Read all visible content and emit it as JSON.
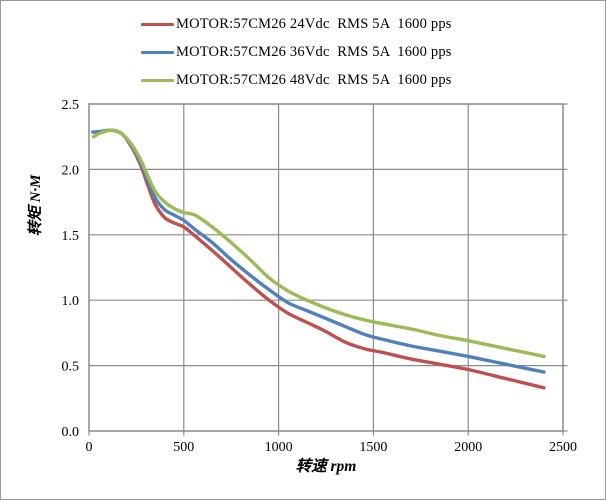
{
  "chart_data": {
    "type": "line",
    "title": "",
    "xlabel": "转速 rpm",
    "ylabel": "转矩 N·M",
    "xlim": [
      0,
      2500
    ],
    "ylim": [
      0,
      2.5
    ],
    "x_tick_values": [
      0,
      500,
      1000,
      1500,
      2000,
      2500
    ],
    "x_tick_labels": [
      "0",
      "500",
      "1000",
      "1500",
      "2000",
      "2500"
    ],
    "y_tick_values": [
      0,
      0.5,
      1.0,
      1.5,
      2.0,
      2.5
    ],
    "y_tick_labels": [
      "0.0",
      "0.5",
      "1.0",
      "1.5",
      "2.0",
      "2.5"
    ],
    "grid": true,
    "legend_position": "top",
    "series": [
      {
        "name": "MOTOR:57CM26 24Vdc  RMS 5A  1600 pps",
        "color": "#C0504D",
        "points": [
          [
            25,
            2.25
          ],
          [
            60,
            2.28
          ],
          [
            120,
            2.3
          ],
          [
            175,
            2.27
          ],
          [
            225,
            2.17
          ],
          [
            270,
            2.04
          ],
          [
            310,
            1.88
          ],
          [
            350,
            1.73
          ],
          [
            400,
            1.63
          ],
          [
            450,
            1.59
          ],
          [
            500,
            1.56
          ],
          [
            560,
            1.49
          ],
          [
            650,
            1.38
          ],
          [
            750,
            1.25
          ],
          [
            850,
            1.12
          ],
          [
            950,
            1.0
          ],
          [
            1050,
            0.9
          ],
          [
            1150,
            0.83
          ],
          [
            1250,
            0.76
          ],
          [
            1350,
            0.68
          ],
          [
            1450,
            0.63
          ],
          [
            1550,
            0.6
          ],
          [
            1700,
            0.55
          ],
          [
            1850,
            0.51
          ],
          [
            2000,
            0.47
          ],
          [
            2200,
            0.4
          ],
          [
            2400,
            0.33
          ]
        ]
      },
      {
        "name": "MOTOR:57CM26 36Vdc  RMS 5A  1600 pps",
        "color": "#4F81BD",
        "points": [
          [
            20,
            2.285
          ],
          [
            60,
            2.29
          ],
          [
            120,
            2.3
          ],
          [
            175,
            2.27
          ],
          [
            225,
            2.18
          ],
          [
            270,
            2.06
          ],
          [
            310,
            1.92
          ],
          [
            350,
            1.78
          ],
          [
            400,
            1.69
          ],
          [
            450,
            1.65
          ],
          [
            500,
            1.61
          ],
          [
            560,
            1.54
          ],
          [
            650,
            1.44
          ],
          [
            750,
            1.31
          ],
          [
            850,
            1.19
          ],
          [
            950,
            1.08
          ],
          [
            1050,
            0.98
          ],
          [
            1150,
            0.92
          ],
          [
            1250,
            0.86
          ],
          [
            1350,
            0.8
          ],
          [
            1450,
            0.74
          ],
          [
            1550,
            0.7
          ],
          [
            1700,
            0.65
          ],
          [
            1850,
            0.61
          ],
          [
            2000,
            0.57
          ],
          [
            2200,
            0.51
          ],
          [
            2400,
            0.45
          ]
        ]
      },
      {
        "name": "MOTOR:57CM26 48Vdc  RMS 5A  1600 pps",
        "color": "#9BBB59",
        "points": [
          [
            25,
            2.25
          ],
          [
            60,
            2.28
          ],
          [
            120,
            2.3
          ],
          [
            175,
            2.27
          ],
          [
            225,
            2.19
          ],
          [
            270,
            2.08
          ],
          [
            310,
            1.95
          ],
          [
            350,
            1.83
          ],
          [
            400,
            1.75
          ],
          [
            450,
            1.7
          ],
          [
            500,
            1.67
          ],
          [
            560,
            1.65
          ],
          [
            650,
            1.56
          ],
          [
            750,
            1.44
          ],
          [
            850,
            1.31
          ],
          [
            950,
            1.17
          ],
          [
            1050,
            1.07
          ],
          [
            1150,
            1.0
          ],
          [
            1250,
            0.94
          ],
          [
            1350,
            0.89
          ],
          [
            1450,
            0.85
          ],
          [
            1550,
            0.82
          ],
          [
            1700,
            0.78
          ],
          [
            1850,
            0.73
          ],
          [
            2000,
            0.69
          ],
          [
            2200,
            0.63
          ],
          [
            2400,
            0.57
          ]
        ]
      }
    ]
  },
  "colors": {
    "gridline": "#8C8C8C",
    "plot_border": "#8C8C8C",
    "outer_border": "#9A9A9A",
    "text": "#000000"
  }
}
